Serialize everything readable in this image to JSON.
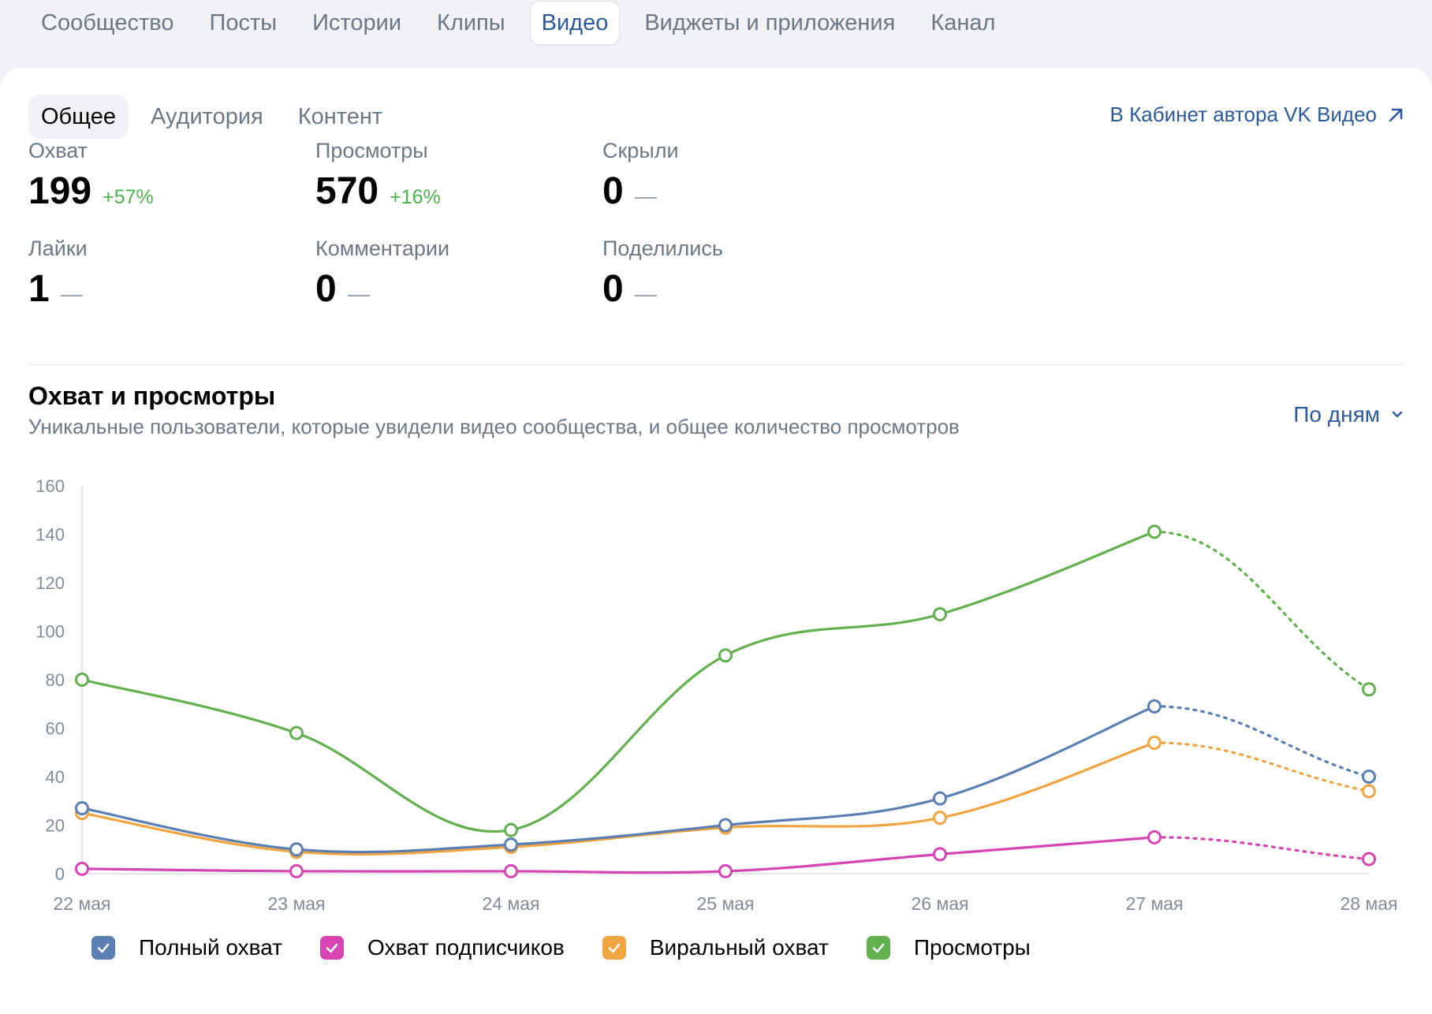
{
  "top_tabs": [
    {
      "label": "Сообщество",
      "active": false
    },
    {
      "label": "Посты",
      "active": false
    },
    {
      "label": "Истории",
      "active": false
    },
    {
      "label": "Клипы",
      "active": false
    },
    {
      "label": "Видео",
      "active": true
    },
    {
      "label": "Виджеты и приложения",
      "active": false
    },
    {
      "label": "Канал",
      "active": false
    }
  ],
  "sub_tabs": [
    {
      "label": "Общее",
      "active": true
    },
    {
      "label": "Аудитория",
      "active": false
    },
    {
      "label": "Контент",
      "active": false
    }
  ],
  "cabinet_link": {
    "label": "В Кабинет автора VK Видео",
    "icon": "arrow-up-right-icon"
  },
  "stats": {
    "reach": {
      "label": "Охват",
      "value": "199",
      "delta": "+57%"
    },
    "views": {
      "label": "Просмотры",
      "value": "570",
      "delta": "+16%"
    },
    "hidden": {
      "label": "Скрыли",
      "value": "0",
      "delta": "—"
    },
    "likes": {
      "label": "Лайки",
      "value": "1",
      "delta": "—"
    },
    "comments": {
      "label": "Комментарии",
      "value": "0",
      "delta": "—"
    },
    "shares": {
      "label": "Поделились",
      "value": "0",
      "delta": "—"
    }
  },
  "chart_section": {
    "title": "Охват и просмотры",
    "subtitle": "Уникальные пользователи, которые увидели видео сообщества, и общее количество просмотров",
    "period_select": {
      "label": "По дням",
      "icon": "chevron-down-icon"
    }
  },
  "chart_data": {
    "type": "line",
    "title": "Охват и просмотры",
    "x": [
      "22 мая",
      "23 мая",
      "24 мая",
      "25 мая",
      "26 мая",
      "27 мая",
      "28 мая"
    ],
    "ylim": [
      0,
      160
    ],
    "yticks": [
      0,
      20,
      40,
      60,
      80,
      100,
      120,
      140,
      160
    ],
    "grid": false,
    "legend_position": "bottom",
    "dashed_last_segment": true,
    "series": [
      {
        "name": "Полный охват",
        "color": "#5b7fb3",
        "values": [
          27,
          10,
          12,
          20,
          31,
          69,
          40
        ]
      },
      {
        "name": "Охват подписчиков",
        "color": "#d645b3",
        "values": [
          2,
          1,
          1,
          1,
          8,
          15,
          6
        ]
      },
      {
        "name": "Виральный охват",
        "color": "#f0a540",
        "values": [
          25,
          9,
          11,
          19,
          23,
          54,
          34
        ]
      },
      {
        "name": "Просмотры",
        "color": "#62b04e",
        "values": [
          80,
          58,
          18,
          90,
          107,
          141,
          76
        ]
      }
    ]
  }
}
